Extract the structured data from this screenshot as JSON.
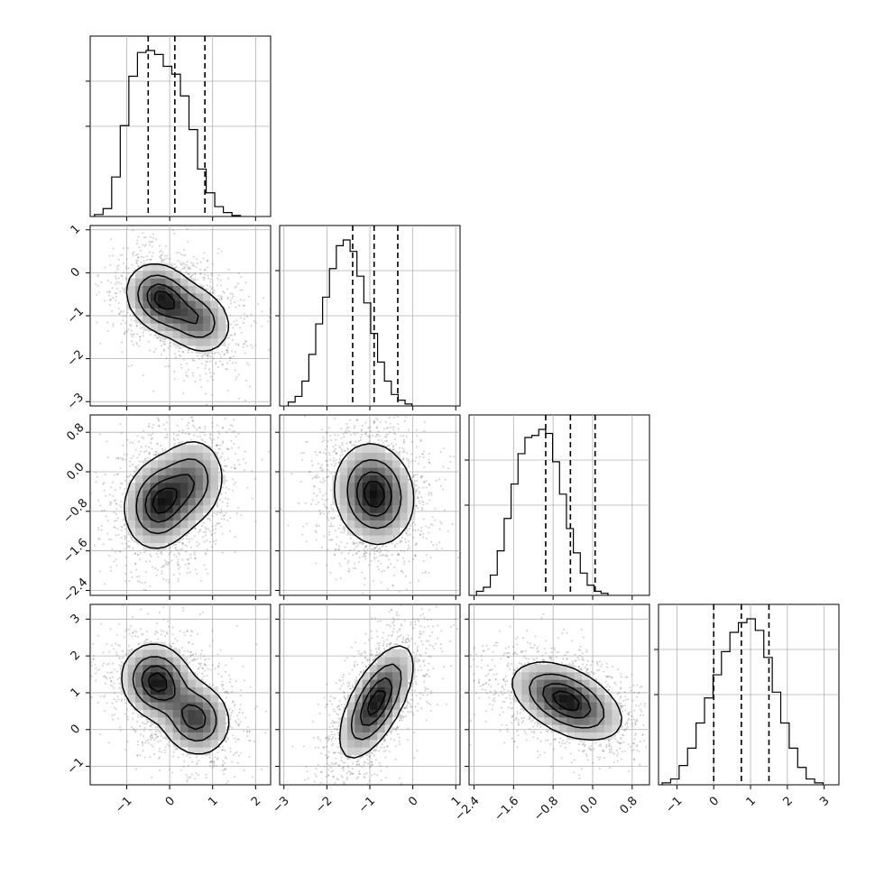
{
  "chart_data": {
    "type": "corner",
    "variables": [
      "",
      "",
      "",
      ""
    ],
    "grid": true,
    "quantiles": [
      0.16,
      0.5,
      0.84
    ],
    "x_ticks": [
      [
        "-1",
        "0",
        "1",
        "2"
      ],
      [
        "-3",
        "-2",
        "-1",
        "0",
        "1"
      ],
      [
        "-2.4",
        "-1.6",
        "-0.8",
        "0.0",
        "0.8"
      ],
      [
        "-1",
        "0",
        "1",
        "2",
        "3"
      ]
    ],
    "y_ticks": [
      null,
      [
        "1",
        "0",
        "-1",
        "-2",
        "-3"
      ],
      [
        "0.8",
        "0.0",
        "-0.8",
        "-1.6",
        "-2.4"
      ],
      [
        "3",
        "2",
        "1",
        "0",
        "-1"
      ]
    ],
    "axis_ranges": [
      [
        -1.85,
        2.35
      ],
      [
        -3.1,
        1.1
      ],
      [
        -2.5,
        1.15
      ],
      [
        -1.5,
        3.4
      ]
    ],
    "marginals": [
      {
        "var": 0,
        "bins_start": -1.75,
        "bin_width": 0.2,
        "counts": [
          0.01,
          0.04,
          0.2,
          0.46,
          0.71,
          0.83,
          0.84,
          0.82,
          0.76,
          0.72,
          0.61,
          0.44,
          0.24,
          0.12,
          0.05,
          0.02,
          0.005
        ],
        "quantile_values": [
          -0.5,
          0.12,
          0.82
        ]
      },
      {
        "var": 1,
        "bins_start": -2.9,
        "bin_width": 0.16,
        "counts": [
          0.02,
          0.05,
          0.13,
          0.27,
          0.43,
          0.57,
          0.72,
          0.84,
          0.87,
          0.81,
          0.68,
          0.54,
          0.38,
          0.23,
          0.13,
          0.06,
          0.03,
          0.01
        ],
        "quantile_values": [
          -1.4,
          -0.9,
          -0.35
        ]
      },
      {
        "var": 2,
        "bins_start": -2.35,
        "bin_width": 0.14,
        "counts": [
          0.02,
          0.04,
          0.1,
          0.22,
          0.38,
          0.55,
          0.7,
          0.78,
          0.79,
          0.82,
          0.8,
          0.66,
          0.5,
          0.33,
          0.21,
          0.11,
          0.05,
          0.02,
          0.01
        ],
        "quantile_values": [
          -0.95,
          -0.45,
          0.05
        ]
      },
      {
        "var": 3,
        "bins_start": -1.4,
        "bin_width": 0.23,
        "counts": [
          0.01,
          0.03,
          0.1,
          0.19,
          0.32,
          0.45,
          0.57,
          0.69,
          0.79,
          0.84,
          0.86,
          0.8,
          0.66,
          0.48,
          0.32,
          0.19,
          0.09,
          0.03,
          0.01
        ],
        "quantile_values": [
          0.0,
          0.75,
          1.5
        ]
      }
    ],
    "pairs": [
      {
        "x": 0,
        "y": 1,
        "modes": [
          {
            "mx": -0.2,
            "my": -0.6,
            "sx": 0.4,
            "sy": 0.4,
            "rho": -0.2,
            "w": 0.6
          },
          {
            "mx": 0.65,
            "my": -1.1,
            "sx": 0.4,
            "sy": 0.4,
            "rho": -0.2,
            "w": 0.4
          }
        ]
      },
      {
        "x": 0,
        "y": 2,
        "modes": [
          {
            "mx": -0.25,
            "my": -0.65,
            "sx": 0.4,
            "sy": 0.45,
            "rho": 0.1,
            "w": 0.6
          },
          {
            "mx": 0.5,
            "my": -0.2,
            "sx": 0.4,
            "sy": 0.45,
            "rho": 0.1,
            "w": 0.4
          }
        ]
      },
      {
        "x": 1,
        "y": 2,
        "modes": [
          {
            "mx": -0.9,
            "my": -0.45,
            "sx": 0.45,
            "sy": 0.5,
            "rho": -0.1,
            "w": 1.0
          }
        ]
      },
      {
        "x": 0,
        "y": 3,
        "modes": [
          {
            "mx": -0.3,
            "my": 1.3,
            "sx": 0.4,
            "sy": 0.5,
            "rho": -0.1,
            "w": 0.55
          },
          {
            "mx": 0.6,
            "my": 0.3,
            "sx": 0.4,
            "sy": 0.5,
            "rho": -0.1,
            "w": 0.45
          }
        ]
      },
      {
        "x": 1,
        "y": 3,
        "modes": [
          {
            "mx": -0.85,
            "my": 0.75,
            "sx": 0.42,
            "sy": 0.75,
            "rho": 0.65,
            "w": 1.0
          }
        ]
      },
      {
        "x": 2,
        "y": 3,
        "modes": [
          {
            "mx": -0.7,
            "my": 1.0,
            "sx": 0.5,
            "sy": 0.45,
            "rho": -0.35,
            "w": 0.55
          },
          {
            "mx": -0.3,
            "my": 0.5,
            "sx": 0.5,
            "sy": 0.45,
            "rho": -0.35,
            "w": 0.45
          }
        ]
      }
    ]
  }
}
